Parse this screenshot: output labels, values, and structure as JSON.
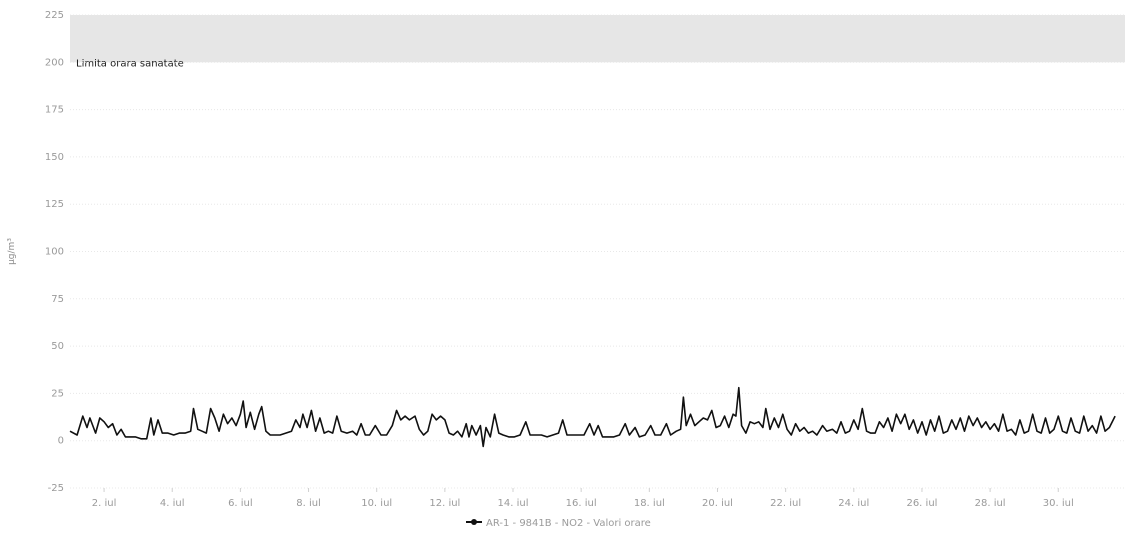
{
  "chart_data": {
    "type": "line",
    "ylabel": "µg/m³",
    "ylim": [
      -25,
      225
    ],
    "yticks": [
      -25,
      0,
      25,
      50,
      75,
      100,
      125,
      150,
      175,
      200,
      225
    ],
    "ytick_labels": [
      "-25",
      "0",
      "25",
      "50",
      "75",
      "100",
      "125",
      "150",
      "175",
      "200",
      "225"
    ],
    "xlim": [
      "2024-07-01",
      "2024-07-31T23:00"
    ],
    "xticks": [
      "2024-07-02",
      "2024-07-04",
      "2024-07-06",
      "2024-07-08",
      "2024-07-10",
      "2024-07-12",
      "2024-07-14",
      "2024-07-16",
      "2024-07-18",
      "2024-07-20",
      "2024-07-22",
      "2024-07-24",
      "2024-07-26",
      "2024-07-28",
      "2024-07-30"
    ],
    "xtick_labels": [
      "2. iul",
      "4. iul",
      "6. iul",
      "8. iul",
      "10. iul",
      "12. iul",
      "14. iul",
      "16. iul",
      "18. iul",
      "20. iul",
      "22. iul",
      "24. iul",
      "26. iul",
      "28. iul",
      "30. iul"
    ],
    "band": {
      "label": "Limita orara sanatate",
      "from": 200,
      "to": 225,
      "color": "#e6e6e6"
    },
    "grid": true,
    "legend": "bottom-center",
    "series": [
      {
        "name": "AR-1 - 9841B - NO2 - Valori orare",
        "color": "#111111",
        "points": [
          [
            "2024-07-01T00:00",
            5
          ],
          [
            "2024-07-01T05:00",
            3
          ],
          [
            "2024-07-01T09:00",
            13
          ],
          [
            "2024-07-01T12:00",
            7
          ],
          [
            "2024-07-01T14:00",
            12
          ],
          [
            "2024-07-01T18:00",
            4
          ],
          [
            "2024-07-01T21:00",
            12
          ],
          [
            "2024-07-02T00:00",
            10
          ],
          [
            "2024-07-02T03:00",
            7
          ],
          [
            "2024-07-02T06:00",
            9
          ],
          [
            "2024-07-02T09:00",
            3
          ],
          [
            "2024-07-02T12:00",
            6
          ],
          [
            "2024-07-02T15:00",
            2
          ],
          [
            "2024-07-02T18:00",
            2
          ],
          [
            "2024-07-02T22:00",
            2
          ],
          [
            "2024-07-03T02:00",
            1
          ],
          [
            "2024-07-03T06:00",
            1
          ],
          [
            "2024-07-03T09:00",
            12
          ],
          [
            "2024-07-03T11:00",
            3
          ],
          [
            "2024-07-03T14:00",
            11
          ],
          [
            "2024-07-03T17:00",
            4
          ],
          [
            "2024-07-03T21:00",
            4
          ],
          [
            "2024-07-04T01:00",
            3
          ],
          [
            "2024-07-04T05:00",
            4
          ],
          [
            "2024-07-04T09:00",
            4
          ],
          [
            "2024-07-04T13:00",
            5
          ],
          [
            "2024-07-04T15:00",
            17
          ],
          [
            "2024-07-04T18:00",
            6
          ],
          [
            "2024-07-04T21:00",
            5
          ],
          [
            "2024-07-05T00:00",
            4
          ],
          [
            "2024-07-05T03:00",
            17
          ],
          [
            "2024-07-05T06:00",
            12
          ],
          [
            "2024-07-05T09:00",
            5
          ],
          [
            "2024-07-05T12:00",
            14
          ],
          [
            "2024-07-05T15:00",
            9
          ],
          [
            "2024-07-05T18:00",
            12
          ],
          [
            "2024-07-05T21:00",
            8
          ],
          [
            "2024-07-06T00:00",
            14
          ],
          [
            "2024-07-06T02:00",
            21
          ],
          [
            "2024-07-06T04:00",
            7
          ],
          [
            "2024-07-06T07:00",
            15
          ],
          [
            "2024-07-06T10:00",
            6
          ],
          [
            "2024-07-06T13:00",
            14
          ],
          [
            "2024-07-06T15:00",
            18
          ],
          [
            "2024-07-06T18:00",
            5
          ],
          [
            "2024-07-06T21:00",
            3
          ],
          [
            "2024-07-07T00:00",
            3
          ],
          [
            "2024-07-07T04:00",
            3
          ],
          [
            "2024-07-07T08:00",
            4
          ],
          [
            "2024-07-07T12:00",
            5
          ],
          [
            "2024-07-07T15:00",
            11
          ],
          [
            "2024-07-07T18:00",
            7
          ],
          [
            "2024-07-07T20:00",
            14
          ],
          [
            "2024-07-07T23:00",
            7
          ],
          [
            "2024-07-08T02:00",
            16
          ],
          [
            "2024-07-08T05:00",
            5
          ],
          [
            "2024-07-08T08:00",
            12
          ],
          [
            "2024-07-08T11:00",
            4
          ],
          [
            "2024-07-08T14:00",
            5
          ],
          [
            "2024-07-08T17:00",
            4
          ],
          [
            "2024-07-08T20:00",
            13
          ],
          [
            "2024-07-08T23:00",
            5
          ],
          [
            "2024-07-09T03:00",
            4
          ],
          [
            "2024-07-09T07:00",
            5
          ],
          [
            "2024-07-09T10:00",
            3
          ],
          [
            "2024-07-09T13:00",
            9
          ],
          [
            "2024-07-09T16:00",
            3
          ],
          [
            "2024-07-09T19:00",
            3
          ],
          [
            "2024-07-09T23:00",
            8
          ],
          [
            "2024-07-10T03:00",
            3
          ],
          [
            "2024-07-10T07:00",
            3
          ],
          [
            "2024-07-10T11:00",
            8
          ],
          [
            "2024-07-10T14:00",
            16
          ],
          [
            "2024-07-10T17:00",
            11
          ],
          [
            "2024-07-10T20:00",
            13
          ],
          [
            "2024-07-10T23:00",
            11
          ],
          [
            "2024-07-11T03:00",
            13
          ],
          [
            "2024-07-11T06:00",
            6
          ],
          [
            "2024-07-11T09:00",
            3
          ],
          [
            "2024-07-11T12:00",
            5
          ],
          [
            "2024-07-11T15:00",
            14
          ],
          [
            "2024-07-11T18:00",
            11
          ],
          [
            "2024-07-11T21:00",
            13
          ],
          [
            "2024-07-12T00:00",
            11
          ],
          [
            "2024-07-12T03:00",
            4
          ],
          [
            "2024-07-12T06:00",
            3
          ],
          [
            "2024-07-12T09:00",
            5
          ],
          [
            "2024-07-12T12:00",
            2
          ],
          [
            "2024-07-12T15:00",
            9
          ],
          [
            "2024-07-12T17:00",
            2
          ],
          [
            "2024-07-12T19:00",
            8
          ],
          [
            "2024-07-12T22:00",
            3
          ],
          [
            "2024-07-13T01:00",
            8
          ],
          [
            "2024-07-13T03:00",
            -3
          ],
          [
            "2024-07-13T05:00",
            7
          ],
          [
            "2024-07-13T08:00",
            2
          ],
          [
            "2024-07-13T11:00",
            14
          ],
          [
            "2024-07-13T14:00",
            4
          ],
          [
            "2024-07-13T17:00",
            3
          ],
          [
            "2024-07-13T21:00",
            2
          ],
          [
            "2024-07-14T01:00",
            2
          ],
          [
            "2024-07-14T05:00",
            3
          ],
          [
            "2024-07-14T09:00",
            10
          ],
          [
            "2024-07-14T12:00",
            3
          ],
          [
            "2024-07-14T16:00",
            3
          ],
          [
            "2024-07-14T20:00",
            3
          ],
          [
            "2024-07-15T00:00",
            2
          ],
          [
            "2024-07-15T04:00",
            3
          ],
          [
            "2024-07-15T08:00",
            4
          ],
          [
            "2024-07-15T11:00",
            11
          ],
          [
            "2024-07-15T14:00",
            3
          ],
          [
            "2024-07-15T18:00",
            3
          ],
          [
            "2024-07-15T22:00",
            3
          ],
          [
            "2024-07-16T02:00",
            3
          ],
          [
            "2024-07-16T06:00",
            9
          ],
          [
            "2024-07-16T09:00",
            3
          ],
          [
            "2024-07-16T12:00",
            8
          ],
          [
            "2024-07-16T15:00",
            2
          ],
          [
            "2024-07-16T19:00",
            2
          ],
          [
            "2024-07-16T23:00",
            2
          ],
          [
            "2024-07-17T03:00",
            3
          ],
          [
            "2024-07-17T07:00",
            9
          ],
          [
            "2024-07-17T10:00",
            3
          ],
          [
            "2024-07-17T14:00",
            7
          ],
          [
            "2024-07-17T17:00",
            2
          ],
          [
            "2024-07-17T21:00",
            3
          ],
          [
            "2024-07-18T01:00",
            8
          ],
          [
            "2024-07-18T04:00",
            3
          ],
          [
            "2024-07-18T08:00",
            3
          ],
          [
            "2024-07-18T12:00",
            9
          ],
          [
            "2024-07-18T15:00",
            3
          ],
          [
            "2024-07-18T19:00",
            5
          ],
          [
            "2024-07-18T22:00",
            6
          ],
          [
            "2024-07-19T00:00",
            23
          ],
          [
            "2024-07-19T02:00",
            8
          ],
          [
            "2024-07-19T05:00",
            14
          ],
          [
            "2024-07-19T08:00",
            8
          ],
          [
            "2024-07-19T11:00",
            10
          ],
          [
            "2024-07-19T14:00",
            12
          ],
          [
            "2024-07-19T17:00",
            11
          ],
          [
            "2024-07-19T20:00",
            16
          ],
          [
            "2024-07-19T23:00",
            7
          ],
          [
            "2024-07-20T02:00",
            8
          ],
          [
            "2024-07-20T05:00",
            13
          ],
          [
            "2024-07-20T08:00",
            7
          ],
          [
            "2024-07-20T11:00",
            14
          ],
          [
            "2024-07-20T13:00",
            13
          ],
          [
            "2024-07-20T15:00",
            28
          ],
          [
            "2024-07-20T17:00",
            8
          ],
          [
            "2024-07-20T20:00",
            4
          ],
          [
            "2024-07-20T23:00",
            10
          ],
          [
            "2024-07-21T02:00",
            9
          ],
          [
            "2024-07-21T05:00",
            10
          ],
          [
            "2024-07-21T08:00",
            7
          ],
          [
            "2024-07-21T10:00",
            17
          ],
          [
            "2024-07-21T13:00",
            6
          ],
          [
            "2024-07-21T16:00",
            12
          ],
          [
            "2024-07-21T19:00",
            7
          ],
          [
            "2024-07-21T22:00",
            14
          ],
          [
            "2024-07-22T01:00",
            6
          ],
          [
            "2024-07-22T04:00",
            3
          ],
          [
            "2024-07-22T07:00",
            9
          ],
          [
            "2024-07-22T10:00",
            5
          ],
          [
            "2024-07-22T13:00",
            7
          ],
          [
            "2024-07-22T16:00",
            4
          ],
          [
            "2024-07-22T19:00",
            5
          ],
          [
            "2024-07-22T22:00",
            3
          ],
          [
            "2024-07-23T02:00",
            8
          ],
          [
            "2024-07-23T05:00",
            5
          ],
          [
            "2024-07-23T09:00",
            6
          ],
          [
            "2024-07-23T12:00",
            4
          ],
          [
            "2024-07-23T15:00",
            10
          ],
          [
            "2024-07-23T18:00",
            4
          ],
          [
            "2024-07-23T21:00",
            5
          ],
          [
            "2024-07-24T00:00",
            11
          ],
          [
            "2024-07-24T03:00",
            6
          ],
          [
            "2024-07-24T06:00",
            17
          ],
          [
            "2024-07-24T09:00",
            5
          ],
          [
            "2024-07-24T12:00",
            4
          ],
          [
            "2024-07-24T15:00",
            4
          ],
          [
            "2024-07-24T18:00",
            10
          ],
          [
            "2024-07-24T21:00",
            7
          ],
          [
            "2024-07-25T00:00",
            12
          ],
          [
            "2024-07-25T03:00",
            5
          ],
          [
            "2024-07-25T06:00",
            14
          ],
          [
            "2024-07-25T09:00",
            9
          ],
          [
            "2024-07-25T12:00",
            14
          ],
          [
            "2024-07-25T15:00",
            6
          ],
          [
            "2024-07-25T18:00",
            11
          ],
          [
            "2024-07-25T21:00",
            4
          ],
          [
            "2024-07-26T00:00",
            10
          ],
          [
            "2024-07-26T03:00",
            3
          ],
          [
            "2024-07-26T06:00",
            11
          ],
          [
            "2024-07-26T09:00",
            5
          ],
          [
            "2024-07-26T12:00",
            13
          ],
          [
            "2024-07-26T15:00",
            4
          ],
          [
            "2024-07-26T18:00",
            5
          ],
          [
            "2024-07-26T21:00",
            11
          ],
          [
            "2024-07-27T00:00",
            6
          ],
          [
            "2024-07-27T03:00",
            12
          ],
          [
            "2024-07-27T06:00",
            5
          ],
          [
            "2024-07-27T09:00",
            13
          ],
          [
            "2024-07-27T12:00",
            8
          ],
          [
            "2024-07-27T15:00",
            12
          ],
          [
            "2024-07-27T18:00",
            7
          ],
          [
            "2024-07-27T21:00",
            10
          ],
          [
            "2024-07-28T00:00",
            6
          ],
          [
            "2024-07-28T03:00",
            9
          ],
          [
            "2024-07-28T06:00",
            5
          ],
          [
            "2024-07-28T09:00",
            14
          ],
          [
            "2024-07-28T12:00",
            5
          ],
          [
            "2024-07-28T15:00",
            6
          ],
          [
            "2024-07-28T18:00",
            3
          ],
          [
            "2024-07-28T21:00",
            11
          ],
          [
            "2024-07-29T00:00",
            4
          ],
          [
            "2024-07-29T03:00",
            5
          ],
          [
            "2024-07-29T06:00",
            14
          ],
          [
            "2024-07-29T09:00",
            5
          ],
          [
            "2024-07-29T12:00",
            4
          ],
          [
            "2024-07-29T15:00",
            12
          ],
          [
            "2024-07-29T18:00",
            4
          ],
          [
            "2024-07-29T21:00",
            6
          ],
          [
            "2024-07-30T00:00",
            13
          ],
          [
            "2024-07-30T03:00",
            5
          ],
          [
            "2024-07-30T06:00",
            4
          ],
          [
            "2024-07-30T09:00",
            12
          ],
          [
            "2024-07-30T12:00",
            5
          ],
          [
            "2024-07-30T15:00",
            4
          ],
          [
            "2024-07-30T18:00",
            13
          ],
          [
            "2024-07-30T21:00",
            5
          ],
          [
            "2024-07-31T00:00",
            8
          ],
          [
            "2024-07-31T03:00",
            4
          ],
          [
            "2024-07-31T06:00",
            13
          ],
          [
            "2024-07-31T09:00",
            5
          ],
          [
            "2024-07-31T12:00",
            7
          ],
          [
            "2024-07-31T16:00",
            13
          ]
        ]
      }
    ]
  }
}
